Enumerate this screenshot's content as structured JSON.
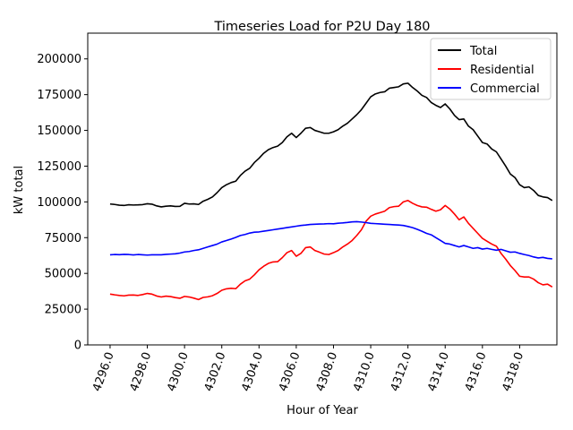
{
  "chart_data": {
    "type": "line",
    "title": "Timeseries Load for P2U   Day 180",
    "xlabel": "Hour of Year",
    "ylabel": "kW total",
    "xlim": [
      4294.8,
      4320.0
    ],
    "ylim": [
      0,
      218000
    ],
    "x_ticks": [
      4296.0,
      4298.0,
      4300.0,
      4302.0,
      4304.0,
      4306.0,
      4308.0,
      4310.0,
      4312.0,
      4314.0,
      4316.0,
      4318.0
    ],
    "x_tick_labels": [
      "4296.0",
      "4298.0",
      "4300.0",
      "4302.0",
      "4304.0",
      "4306.0",
      "4308.0",
      "4310.0",
      "4312.0",
      "4314.0",
      "4316.0",
      "4318.0"
    ],
    "y_ticks": [
      0,
      25000,
      50000,
      75000,
      100000,
      125000,
      150000,
      175000,
      200000
    ],
    "y_tick_labels": [
      "0",
      "25000",
      "50000",
      "75000",
      "100000",
      "125000",
      "150000",
      "175000",
      "200000"
    ],
    "grid": false,
    "legend_position": "top-right",
    "x": [
      4296.0,
      4296.25,
      4296.5,
      4296.75,
      4297.0,
      4297.25,
      4297.5,
      4297.75,
      4298.0,
      4298.25,
      4298.5,
      4298.75,
      4299.0,
      4299.25,
      4299.5,
      4299.75,
      4300.0,
      4300.25,
      4300.5,
      4300.75,
      4301.0,
      4301.25,
      4301.5,
      4301.75,
      4302.0,
      4302.25,
      4302.5,
      4302.75,
      4303.0,
      4303.25,
      4303.5,
      4303.75,
      4304.0,
      4304.25,
      4304.5,
      4304.75,
      4305.0,
      4305.25,
      4305.5,
      4305.75,
      4306.0,
      4306.25,
      4306.5,
      4306.75,
      4307.0,
      4307.25,
      4307.5,
      4307.75,
      4308.0,
      4308.25,
      4308.5,
      4308.75,
      4309.0,
      4309.25,
      4309.5,
      4309.75,
      4310.0,
      4310.25,
      4310.5,
      4310.75,
      4311.0,
      4311.25,
      4311.5,
      4311.75,
      4312.0,
      4312.25,
      4312.5,
      4312.75,
      4313.0,
      4313.25,
      4313.5,
      4313.75,
      4314.0,
      4314.25,
      4314.5,
      4314.75,
      4315.0,
      4315.25,
      4315.5,
      4315.75,
      4316.0,
      4316.25,
      4316.5,
      4316.75,
      4317.0,
      4317.25,
      4317.5,
      4317.75,
      4318.0,
      4318.25,
      4318.5,
      4318.75,
      4319.0,
      4319.25,
      4319.5,
      4319.75
    ],
    "series": [
      {
        "name": "Total",
        "color": "#000000",
        "values": [
          98500,
          98200,
          97700,
          97500,
          98000,
          97800,
          97900,
          98100,
          98700,
          98400,
          97200,
          96500,
          97000,
          97200,
          96800,
          96900,
          99000,
          98500,
          98600,
          98200,
          100500,
          101800,
          103500,
          106500,
          110000,
          112000,
          113500,
          114500,
          118500,
          121500,
          123500,
          127500,
          130500,
          134000,
          136500,
          138000,
          139000,
          141500,
          145500,
          148000,
          145000,
          148000,
          151500,
          152000,
          150000,
          149000,
          148000,
          148000,
          149000,
          150500,
          153000,
          155000,
          158000,
          161000,
          164500,
          169000,
          173500,
          175500,
          176500,
          177000,
          179500,
          180000,
          180500,
          182500,
          183000,
          180000,
          177500,
          174500,
          173000,
          169500,
          167500,
          166000,
          168500,
          165000,
          160500,
          157500,
          158000,
          153000,
          150500,
          146000,
          141500,
          140500,
          137000,
          135000,
          130000,
          125000,
          119500,
          117000,
          112000,
          110000,
          110500,
          108000,
          104500,
          103500,
          103000,
          101000
        ]
      },
      {
        "name": "Residential",
        "color": "#ff0000",
        "values": [
          35500,
          35000,
          34600,
          34300,
          34800,
          34900,
          34600,
          35200,
          36000,
          35500,
          34200,
          33500,
          34100,
          33800,
          33100,
          32600,
          33900,
          33500,
          32700,
          31700,
          33200,
          33600,
          34400,
          36000,
          38200,
          39200,
          39600,
          39300,
          42500,
          44800,
          46000,
          49000,
          52500,
          55000,
          57000,
          58000,
          58200,
          61000,
          64500,
          66000,
          62000,
          64000,
          68000,
          68500,
          66000,
          64800,
          63500,
          63200,
          64500,
          66000,
          68500,
          70500,
          73000,
          76500,
          80500,
          86500,
          90000,
          91500,
          92500,
          93500,
          96000,
          96700,
          97000,
          100000,
          101000,
          99000,
          97500,
          96500,
          96300,
          94800,
          93500,
          94500,
          97500,
          95000,
          91500,
          87500,
          89500,
          85000,
          81500,
          78000,
          74500,
          72500,
          70500,
          69000,
          64000,
          60000,
          55500,
          52000,
          48000,
          47500,
          47500,
          46000,
          43500,
          42000,
          42500,
          40500
        ]
      },
      {
        "name": "Commercial",
        "color": "#0000ff",
        "values": [
          63000,
          63200,
          63100,
          63300,
          63200,
          62900,
          63200,
          63000,
          62800,
          63000,
          63000,
          63000,
          63300,
          63500,
          63700,
          64200,
          65000,
          65300,
          66000,
          66500,
          67500,
          68500,
          69500,
          70500,
          72000,
          73000,
          74000,
          75200,
          76500,
          77200,
          78200,
          78800,
          79000,
          79500,
          80000,
          80500,
          81000,
          81500,
          82000,
          82500,
          83000,
          83500,
          83800,
          84200,
          84400,
          84500,
          84600,
          84800,
          84700,
          85100,
          85300,
          85600,
          86000,
          86200,
          85900,
          85500,
          85000,
          84800,
          84600,
          84400,
          84200,
          84000,
          83800,
          83500,
          82800,
          82000,
          80800,
          79500,
          78000,
          77000,
          75000,
          73000,
          71000,
          70500,
          69500,
          68500,
          69500,
          68500,
          67500,
          68000,
          67000,
          67500,
          66800,
          66200,
          66800,
          65800,
          64800,
          65000,
          64000,
          63200,
          62500,
          61500,
          60800,
          61200,
          60500,
          60200
        ]
      }
    ]
  }
}
